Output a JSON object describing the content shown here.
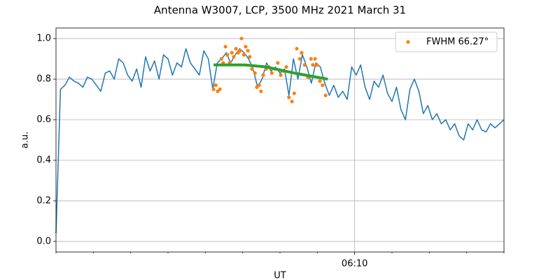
{
  "chart_data": {
    "type": "line",
    "title": "Antenna W3007, LCP, 3500 MHz 2021 March 31",
    "xlabel": "UT",
    "ylabel": "a.u.",
    "xlim": [
      362,
      374
    ],
    "ylim": [
      -0.052,
      1.052
    ],
    "xticks": [
      {
        "value": 370,
        "label": "06:10"
      }
    ],
    "xminorticks": [
      362,
      363,
      364,
      365,
      366,
      367,
      368,
      369,
      371,
      372,
      373,
      374
    ],
    "yticks": [
      {
        "value": 0,
        "label": "0.0"
      },
      0.2,
      0.4,
      0.6,
      0.8,
      {
        "value": 1,
        "label": "1.0"
      }
    ],
    "grid": true,
    "legend": "upper right",
    "series": [
      {
        "style": "line",
        "color": "#1f77b4",
        "x": [
          362.0,
          362.12,
          362.24,
          362.36,
          362.48,
          362.6,
          362.72,
          362.84,
          362.96,
          363.08,
          363.2,
          363.32,
          363.44,
          363.56,
          363.68,
          363.8,
          363.92,
          364.04,
          364.16,
          364.28,
          364.4,
          364.52,
          364.64,
          364.76,
          364.88,
          365.0,
          365.12,
          365.24,
          365.36,
          365.48,
          365.6,
          365.72,
          365.84,
          365.96,
          366.08,
          366.2,
          366.32,
          366.44,
          366.56,
          366.68,
          366.8,
          366.92,
          367.04,
          367.16,
          367.28,
          367.4,
          367.52,
          367.64,
          367.76,
          367.88,
          368.0,
          368.12,
          368.24,
          368.36,
          368.48,
          368.6,
          368.72,
          368.84,
          368.96,
          369.08,
          369.2,
          369.32,
          369.44,
          369.56,
          369.68,
          369.8,
          369.92,
          370.04,
          370.16,
          370.28,
          370.4,
          370.52,
          370.64,
          370.76,
          370.88,
          371.0,
          371.12,
          371.24,
          371.36,
          371.48,
          371.6,
          371.72,
          371.84,
          371.96,
          372.08,
          372.2,
          372.32,
          372.44,
          372.56,
          372.68,
          372.8,
          372.92,
          373.04,
          373.16,
          373.28,
          373.4,
          373.52,
          373.64,
          373.76,
          373.88,
          374.0
        ],
        "values": [
          0.04,
          0.75,
          0.77,
          0.81,
          0.79,
          0.78,
          0.76,
          0.81,
          0.8,
          0.77,
          0.74,
          0.83,
          0.84,
          0.8,
          0.9,
          0.88,
          0.82,
          0.79,
          0.85,
          0.76,
          0.91,
          0.84,
          0.89,
          0.8,
          0.92,
          0.9,
          0.82,
          0.88,
          0.86,
          0.95,
          0.88,
          0.85,
          0.82,
          0.94,
          0.9,
          0.75,
          0.88,
          0.9,
          0.93,
          0.88,
          0.92,
          0.95,
          0.93,
          0.9,
          0.85,
          0.76,
          0.8,
          0.88,
          0.84,
          0.86,
          0.83,
          0.85,
          0.72,
          0.9,
          0.8,
          0.92,
          0.86,
          0.78,
          0.88,
          0.86,
          0.78,
          0.72,
          0.77,
          0.71,
          0.74,
          0.7,
          0.86,
          0.82,
          0.87,
          0.76,
          0.7,
          0.79,
          0.76,
          0.82,
          0.73,
          0.69,
          0.76,
          0.65,
          0.6,
          0.75,
          0.8,
          0.74,
          0.63,
          0.67,
          0.6,
          0.63,
          0.58,
          0.6,
          0.55,
          0.58,
          0.52,
          0.5,
          0.58,
          0.55,
          0.6,
          0.55,
          0.54,
          0.58,
          0.56,
          0.58,
          0.6
        ]
      },
      {
        "style": "scatter",
        "name": "FWHM 66.27°",
        "color": "#ff7f0e",
        "x": [
          366.22,
          366.28,
          366.33,
          366.39,
          366.43,
          366.48,
          366.54,
          366.59,
          366.65,
          366.71,
          366.76,
          366.82,
          366.88,
          366.93,
          366.97,
          367.03,
          367.08,
          367.14,
          367.19,
          367.25,
          367.33,
          367.38,
          367.44,
          367.49,
          367.55,
          367.63,
          367.7,
          367.78,
          367.87,
          367.94,
          368.02,
          368.09,
          368.17,
          368.24,
          368.32,
          368.38,
          368.45,
          368.53,
          368.58,
          368.66,
          368.75,
          368.83,
          368.88,
          368.94,
          368.99,
          369.07,
          369.14,
          369.22
        ],
        "values": [
          0.75,
          0.77,
          0.74,
          0.75,
          0.9,
          0.88,
          0.96,
          0.92,
          0.88,
          0.93,
          0.91,
          0.95,
          0.93,
          0.94,
          1.0,
          0.92,
          0.96,
          0.94,
          0.91,
          0.85,
          0.83,
          0.76,
          0.77,
          0.74,
          0.82,
          0.85,
          0.86,
          0.83,
          0.85,
          0.88,
          0.82,
          0.84,
          0.86,
          0.71,
          0.69,
          0.73,
          0.95,
          0.9,
          0.93,
          0.87,
          0.81,
          0.9,
          0.87,
          0.9,
          0.87,
          0.79,
          0.77,
          0.72
        ]
      },
      {
        "style": "thick-line",
        "color": "#2ca02c",
        "x": [
          366.22,
          367.06,
          367.63,
          368.38,
          369.28
        ],
        "values": [
          0.87,
          0.87,
          0.86,
          0.83,
          0.8
        ]
      }
    ]
  }
}
